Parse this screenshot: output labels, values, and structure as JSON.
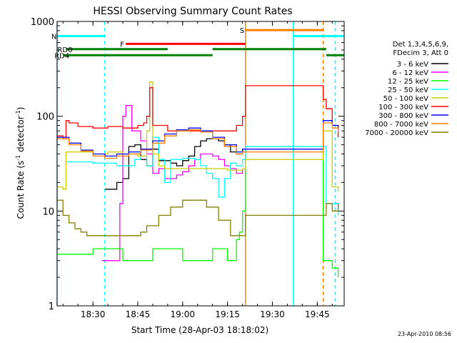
{
  "chart_data": {
    "type": "line",
    "title": "HESSI Observing Summary Count Rates",
    "xlabel": "Start Time (28-Apr-03 18:18:02)",
    "ylabel_main": "Count Rate (s",
    "ylabel_sup": "-1",
    "ylabel_mid": " detector",
    "ylabel_end": ")",
    "yscale": "log",
    "ylim": [
      1,
      1000
    ],
    "xlim": [
      "18:18:02",
      "19:54:00"
    ],
    "x_ticks": [
      "18:30",
      "18:45",
      "19:00",
      "19:15",
      "19:30",
      "19:45"
    ],
    "y_ticks": [
      "1",
      "10",
      "100",
      "1000"
    ],
    "legend_header": [
      "Det 1,3,4,5,6,9,",
      "FDecim 3, Att 0"
    ],
    "series": [
      {
        "name": "3 - 6 keV",
        "color": "#000000",
        "x": [
          "18:34",
          "18:38",
          "18:40",
          "18:42",
          "18:44",
          "18:46",
          "18:48",
          "18:50",
          "18:52",
          "18:54",
          "18:56",
          "18:58",
          "19:00",
          "19:02",
          "19:04",
          "19:06",
          "19:08",
          "19:10",
          "19:12",
          "19:14",
          "19:16",
          "19:18",
          "19:20"
        ],
        "y": [
          17,
          20,
          22,
          48,
          50,
          35,
          30,
          45,
          34,
          34,
          32,
          30,
          34,
          38,
          48,
          55,
          58,
          58,
          55,
          50,
          42,
          40,
          44
        ]
      },
      {
        "name": "6 - 12 keV",
        "color": "#ff00ff",
        "x": [
          "18:33",
          "18:37",
          "18:39",
          "18:40",
          "18:41",
          "18:43",
          "18:46",
          "18:48",
          "18:50",
          "18:52",
          "18:54",
          "18:56",
          "18:58",
          "19:00",
          "19:02",
          "19:04",
          "19:06",
          "19:08",
          "19:10",
          "19:12",
          "19:14",
          "19:16",
          "19:18",
          "19:20"
        ],
        "y": [
          3,
          3,
          12,
          100,
          130,
          70,
          55,
          40,
          25,
          28,
          22,
          22,
          24,
          26,
          30,
          35,
          40,
          40,
          38,
          35,
          30,
          28,
          25,
          28
        ]
      },
      {
        "name": "12 - 25 keV",
        "color": "#00ff00",
        "x": [
          "18:18",
          "18:30",
          "18:40",
          "18:50",
          "19:00",
          "19:10",
          "19:15",
          "19:18",
          "19:19",
          "19:20",
          "19:21",
          "19:47",
          "19:50",
          "19:52"
        ],
        "y": [
          3.5,
          4,
          3,
          4,
          3,
          4,
          3,
          5,
          6,
          10,
          48,
          3,
          2.5,
          2
        ]
      },
      {
        "name": "25 - 50 keV",
        "color": "#00ffff",
        "x": [
          "18:21",
          "18:25",
          "18:30",
          "18:34",
          "18:38",
          "18:40",
          "18:44",
          "18:46",
          "18:48",
          "18:50",
          "18:52",
          "18:54",
          "18:56",
          "18:58",
          "19:00",
          "19:02",
          "19:04",
          "19:06",
          "19:08",
          "19:10",
          "19:12",
          "19:14",
          "19:16",
          "19:18",
          "19:20",
          "19:21",
          "19:48",
          "19:50",
          "19:52"
        ],
        "y": [
          33,
          33,
          32,
          32,
          30,
          30,
          35,
          38,
          30,
          60,
          35,
          20,
          35,
          35,
          36,
          36,
          35,
          30,
          25,
          22,
          14,
          22,
          32,
          30,
          35,
          48,
          12,
          12,
          9
        ]
      },
      {
        "name": "50 - 100 keV",
        "color": "#cccc00",
        "x": [
          "18:18",
          "18:20",
          "18:21",
          "18:30",
          "18:35",
          "18:40",
          "18:45",
          "18:47",
          "18:48",
          "18:49",
          "18:50",
          "18:52",
          "18:54",
          "18:56",
          "19:00",
          "19:05",
          "19:10",
          "19:15",
          "19:20",
          "19:21",
          "19:47",
          "19:50",
          "19:52"
        ],
        "y": [
          18,
          17,
          42,
          40,
          42,
          40,
          38,
          38,
          70,
          230,
          40,
          30,
          28,
          28,
          28,
          28,
          28,
          27,
          28,
          35,
          70,
          18,
          16
        ]
      },
      {
        "name": "100 - 300 keV",
        "color": "#ff0000",
        "x": [
          "18:18",
          "18:20",
          "18:21",
          "18:22",
          "18:25",
          "18:30",
          "18:35",
          "18:40",
          "18:45",
          "18:47",
          "18:48",
          "18:49",
          "18:50",
          "18:55",
          "19:00",
          "19:05",
          "19:10",
          "19:15",
          "19:18",
          "19:20",
          "19:21",
          "19:47",
          "19:48",
          "19:50",
          "19:52"
        ],
        "y": [
          62,
          58,
          90,
          85,
          78,
          75,
          78,
          75,
          80,
          85,
          100,
          200,
          80,
          70,
          70,
          70,
          70,
          70,
          80,
          100,
          210,
          150,
          120,
          80,
          60
        ]
      },
      {
        "name": "300 - 800 keV",
        "color": "#0000ff",
        "x": [
          "18:18",
          "18:22",
          "18:26",
          "18:30",
          "18:34",
          "18:38",
          "18:42",
          "18:46",
          "18:50",
          "18:54",
          "18:58",
          "19:02",
          "19:06",
          "19:10",
          "19:14",
          "19:18",
          "19:20",
          "19:47",
          "19:50",
          "19:52"
        ],
        "y": [
          60,
          52,
          44,
          40,
          38,
          40,
          42,
          45,
          55,
          65,
          72,
          75,
          70,
          60,
          50,
          42,
          45,
          90,
          80,
          70
        ]
      },
      {
        "name": "800 - 7000 keV",
        "color": "#ff8000",
        "x": [
          "18:18",
          "18:22",
          "18:26",
          "18:30",
          "18:34",
          "18:38",
          "18:42",
          "18:46",
          "18:50",
          "18:54",
          "18:58",
          "19:02",
          "19:06",
          "19:10",
          "19:14",
          "19:18",
          "19:20",
          "19:47",
          "19:50",
          "19:52"
        ],
        "y": [
          58,
          50,
          43,
          38,
          36,
          38,
          40,
          44,
          52,
          62,
          70,
          72,
          68,
          58,
          48,
          40,
          42,
          85,
          75,
          68
        ]
      },
      {
        "name": "7000 - 20000 keV",
        "color": "#808000",
        "x": [
          "18:18",
          "18:20",
          "18:22",
          "18:24",
          "18:26",
          "18:28",
          "18:30",
          "18:34",
          "18:38",
          "18:42",
          "18:46",
          "18:48",
          "18:52",
          "18:56",
          "19:00",
          "19:04",
          "19:08",
          "19:12",
          "19:16",
          "19:18",
          "19:20",
          "19:21",
          "19:48",
          "19:50",
          "19:52"
        ],
        "y": [
          13,
          9,
          7.5,
          6.5,
          6,
          5.5,
          5.5,
          5.5,
          5.5,
          5.5,
          6,
          7,
          9,
          11,
          13,
          13,
          11,
          8,
          5.5,
          5.5,
          5.5,
          9,
          12,
          10,
          12
        ]
      }
    ],
    "flag_bars": [
      {
        "label": "N",
        "color": "#00ffff",
        "y": 700,
        "segments": [
          [
            "18:18",
            "18:34"
          ],
          [
            "19:37",
            "19:54"
          ]
        ]
      },
      {
        "label": "F",
        "color": "#ff0000",
        "y": 580,
        "segments": [
          [
            "18:41",
            "19:21"
          ]
        ]
      },
      {
        "label": "S",
        "color": "#ff8000",
        "y": 810,
        "segments": [
          [
            "19:21",
            "19:47"
          ]
        ]
      },
      {
        "label": "RD0",
        "color": "#008000",
        "y": 510,
        "segments": [
          [
            "18:21",
            "18:55"
          ],
          [
            "19:10",
            "19:48"
          ]
        ]
      },
      {
        "label": "RD4",
        "color": "#008000",
        "y": 440,
        "segments": [
          [
            "18:20",
            "19:10"
          ],
          [
            "19:48",
            "19:54"
          ]
        ]
      }
    ],
    "vlines": [
      {
        "x": "18:18",
        "color": "#00ffff",
        "style": "solid"
      },
      {
        "x": "18:34",
        "color": "#00ffff",
        "style": "dashed"
      },
      {
        "x": "19:21",
        "color": "#ff8000",
        "style": "solid"
      },
      {
        "x": "19:37",
        "color": "#00ffff",
        "style": "solid"
      },
      {
        "x": "19:47",
        "color": "#ff8000",
        "style": "dashed"
      },
      {
        "x": "19:51",
        "color": "#00ffff",
        "style": "dashed"
      }
    ],
    "footer_date": "23-Apr-2010 08:56"
  }
}
